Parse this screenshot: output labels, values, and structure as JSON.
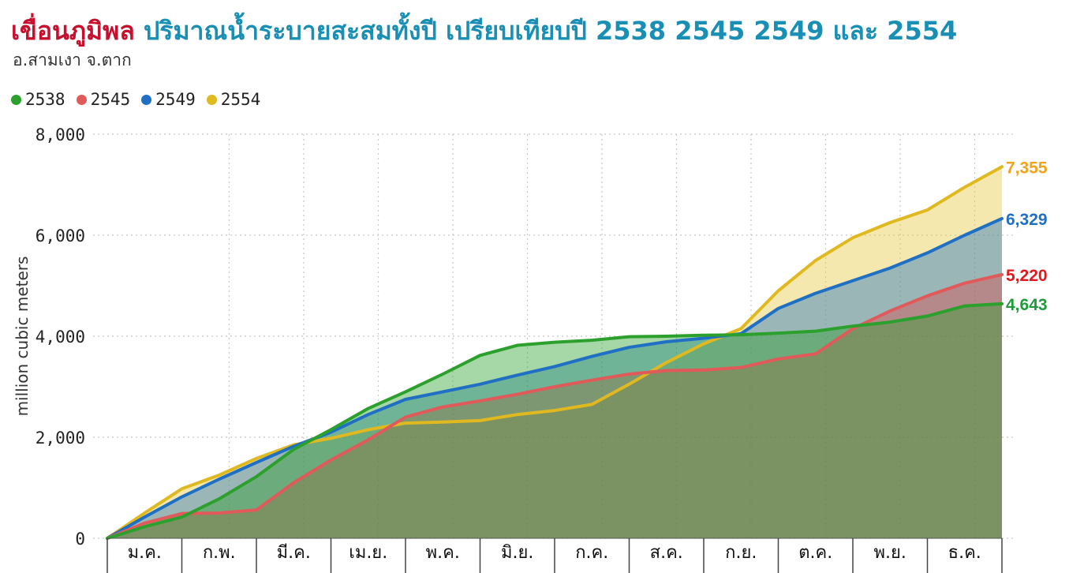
{
  "title": {
    "part1": "เขื่อนภูมิพล",
    "part2": "ปริมาณน้ำระบายสะสมทั้งปี เปรียบเทียบปี 2538 2545 2549 และ 2554"
  },
  "subtitle": "อ.สามเงา จ.ตาก",
  "colors": {
    "title_red": "#c8102e",
    "title_blue": "#1a8fb5"
  },
  "chart_data": {
    "type": "area",
    "title": "เขื่อนภูมิพล ปริมาณน้ำระบายสะสมทั้งปี เปรียบเทียบปี 2538 2545 2549 และ 2554",
    "subtitle": "อ.สามเงา จ.ตาก",
    "ylabel": "million cubic meters",
    "xlabel": "",
    "ylim": [
      0,
      8000
    ],
    "yticks": [
      0,
      2000,
      4000,
      6000,
      8000
    ],
    "ytick_labels": [
      "0",
      "2,000",
      "4,000",
      "6,000",
      "8,000"
    ],
    "categories": [
      "ม.ค.",
      "ก.พ.",
      "มี.ค.",
      "เม.ย.",
      "พ.ค.",
      "มิ.ย.",
      "ก.ค.",
      "ส.ค.",
      "ก.ย.",
      "ต.ค.",
      "พ.ย.",
      "ธ.ค."
    ],
    "grid": true,
    "legend_position": "top-left",
    "x_unit": "month (0 = start of January, 12 = end of December)",
    "series": [
      {
        "name": "2538",
        "color": "#2ca02c",
        "fill": "#2ca02c",
        "end_label": "4,643",
        "label_color": "#1f9a3a",
        "x": [
          0,
          0.5,
          1,
          1.5,
          2,
          2.5,
          3,
          3.5,
          4,
          4.5,
          5,
          5.5,
          6,
          6.5,
          7,
          7.5,
          8,
          8.5,
          9,
          9.5,
          10,
          10.5,
          11,
          11.5,
          12
        ],
        "values": [
          0,
          230,
          420,
          780,
          1220,
          1760,
          2150,
          2570,
          2900,
          3250,
          3620,
          3820,
          3880,
          3920,
          3990,
          4000,
          4020,
          4030,
          4060,
          4100,
          4200,
          4280,
          4400,
          4600,
          4643
        ]
      },
      {
        "name": "2545",
        "color": "#e05a5a",
        "fill": "#d94c4c",
        "end_label": "5,220",
        "label_color": "#e0191e",
        "x": [
          0,
          0.5,
          1,
          1.5,
          2,
          2.5,
          3,
          3.5,
          4,
          4.5,
          5,
          5.5,
          6,
          6.5,
          7,
          7.5,
          8,
          8.5,
          9,
          9.5,
          10,
          10.5,
          11,
          11.5,
          12
        ],
        "values": [
          0,
          300,
          490,
          500,
          560,
          1100,
          1550,
          1950,
          2400,
          2600,
          2720,
          2850,
          3000,
          3130,
          3250,
          3320,
          3330,
          3380,
          3550,
          3650,
          4150,
          4500,
          4800,
          5050,
          5220
        ]
      },
      {
        "name": "2549",
        "color": "#1f6fc4",
        "fill": "#1f6fc4",
        "end_label": "6,329",
        "label_color": "#1f6fc4",
        "x": [
          0,
          0.5,
          1,
          1.5,
          2,
          2.5,
          3,
          3.5,
          4,
          4.5,
          5,
          5.5,
          6,
          6.5,
          7,
          7.5,
          8,
          8.5,
          9,
          9.5,
          10,
          10.5,
          11,
          11.5,
          12
        ],
        "values": [
          0,
          420,
          820,
          1170,
          1500,
          1820,
          2100,
          2450,
          2750,
          2900,
          3050,
          3230,
          3400,
          3600,
          3780,
          3890,
          3960,
          4050,
          4550,
          4850,
          5100,
          5350,
          5650,
          6000,
          6329
        ]
      },
      {
        "name": "2554",
        "color": "#e0b820",
        "fill": "#e6c840",
        "end_label": "7,355",
        "label_color": "#f0a31c",
        "x": [
          0,
          0.5,
          1,
          1.5,
          2,
          2.5,
          3,
          3.5,
          4,
          4.5,
          5,
          5.5,
          6,
          6.5,
          7,
          7.5,
          8,
          8.5,
          9,
          9.5,
          10,
          10.5,
          11,
          11.5,
          12
        ],
        "values": [
          0,
          500,
          980,
          1250,
          1580,
          1850,
          1980,
          2150,
          2280,
          2300,
          2330,
          2450,
          2530,
          2650,
          3050,
          3480,
          3850,
          4150,
          4900,
          5500,
          5950,
          6250,
          6500,
          6950,
          7355
        ]
      }
    ]
  }
}
